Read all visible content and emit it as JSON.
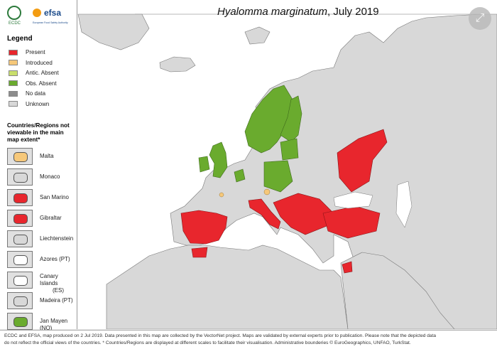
{
  "map": {
    "title_species": "Hyalomma marginatum",
    "title_date": ", July 2019"
  },
  "logos": {
    "left": "ECDC",
    "right": "efsa",
    "right_sub": "European Food Safety Authority"
  },
  "legend": {
    "title": "Legend",
    "items": [
      {
        "label": "Present",
        "color": "#e8262d"
      },
      {
        "label": "Introduced",
        "color": "#f6c87a"
      },
      {
        "label": "Antic. Absent",
        "color": "#c9df6c"
      },
      {
        "label": "Obs. Absent",
        "color": "#6aab2e"
      },
      {
        "label": "No data",
        "color": "#8c8c8c"
      },
      {
        "label": "Unknown",
        "color": "#d8d8d8"
      }
    ]
  },
  "insets": {
    "title": "Countries/Regions not viewable in the main map extent*",
    "items": [
      {
        "label": "Malta",
        "color": "#f6c87a"
      },
      {
        "label": "Monaco",
        "color": "#d8d8d8"
      },
      {
        "label": "San Marino",
        "color": "#e8262d"
      },
      {
        "label": "Gibraltar",
        "color": "#e8262d"
      },
      {
        "label": "Liechtenstein",
        "color": "#d8d8d8"
      },
      {
        "label": "Azores (PT)",
        "color": "#ffffff"
      },
      {
        "label": "Canary Islands",
        "label2": "(ES)",
        "color": "#ffffff"
      },
      {
        "label": "Madeira (PT)",
        "color": "#d8d8d8"
      },
      {
        "label": "Jan Mayen (NO)",
        "color": "#6aab2e"
      }
    ]
  },
  "footer": {
    "line1": "ECDC and EFSA, map produced on 2 Jul 2019. Data presented in this map are collected by the VectorNet project. Maps are validated by external experts prior to publication. Please note that the depicted data",
    "line2": "do not reflect the official views of the countries. * Countries/Regions are displayed at different scales to facilitate their visualisation. Administrative bounderies © EuroGeographics, UNFAO, TurkStat."
  }
}
